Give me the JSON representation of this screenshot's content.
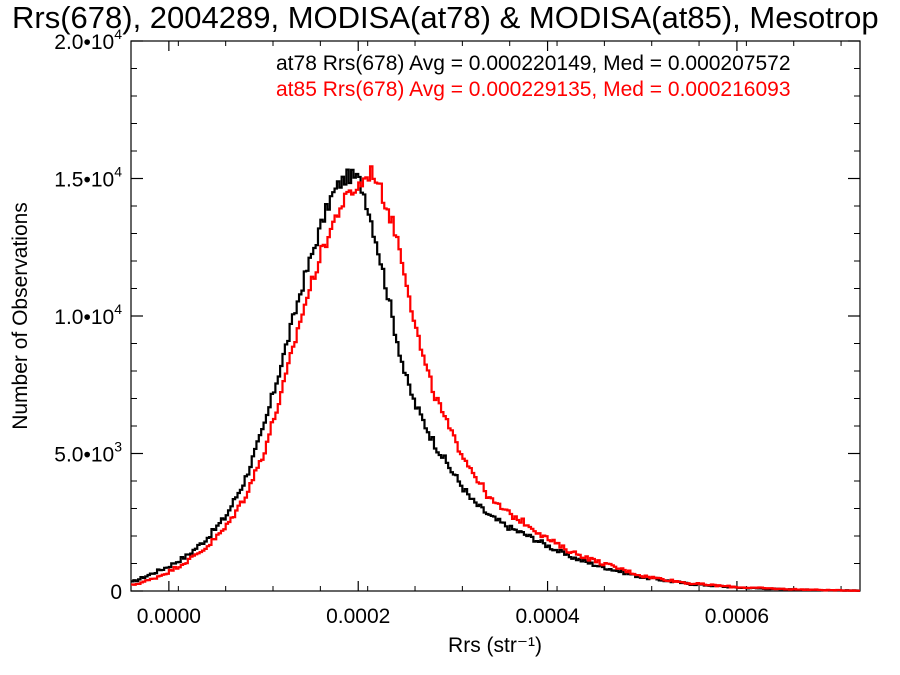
{
  "chart_data": {
    "type": "line",
    "title": "Rrs(678), 2004289, MODISA(at78) & MODISA(at85), Mesotrop",
    "xlabel": "Rrs (str⁻¹)",
    "ylabel": "Number of Observations",
    "xlim": [
      -4e-05,
      0.00073
    ],
    "ylim": [
      0,
      20000
    ],
    "grid": false,
    "x_ticks": [
      {
        "value": 0.0,
        "label": "0.0000"
      },
      {
        "value": 0.0002,
        "label": "0.0002"
      },
      {
        "value": 0.0004,
        "label": "0.0004"
      },
      {
        "value": 0.0006,
        "label": "0.0006"
      }
    ],
    "y_ticks": [
      {
        "value": 0,
        "mantissa": "0",
        "exponent": ""
      },
      {
        "value": 5000,
        "mantissa": "5.0•10",
        "exponent": "3"
      },
      {
        "value": 10000,
        "mantissa": "1.0•10",
        "exponent": "4"
      },
      {
        "value": 15000,
        "mantissa": "1.5•10",
        "exponent": "4"
      },
      {
        "value": 20000,
        "mantissa": "2.0•10",
        "exponent": "4"
      }
    ],
    "annotations": [
      {
        "text": "at78 Rrs(678) Avg = 0.000220149, Med = 0.000207572",
        "color": "#000000"
      },
      {
        "text": "at85 Rrs(678) Avg = 0.000229135, Med = 0.000216093",
        "color": "#ff0000"
      }
    ],
    "series": [
      {
        "color": "#000000",
        "x": [
          -4e-05,
          -2e-05,
          0.0,
          2e-05,
          4e-05,
          6e-05,
          8e-05,
          0.0001,
          0.00012,
          0.00014,
          0.00016,
          0.00017,
          0.00018,
          0.00019,
          0.0002,
          0.000205,
          0.00021,
          0.00022,
          0.00023,
          0.00024,
          0.00025,
          0.00026,
          0.00028,
          0.0003,
          0.00032,
          0.00034,
          0.00036,
          0.00038,
          0.0004,
          0.00042,
          0.00045,
          0.0005,
          0.00055,
          0.0006,
          0.00065,
          0.0007,
          0.00073
        ],
        "values": [
          300,
          600,
          900,
          1300,
          1900,
          2700,
          4000,
          5900,
          8400,
          11000,
          13200,
          14200,
          14800,
          15100,
          15000,
          14600,
          14000,
          12600,
          11000,
          9300,
          7800,
          6800,
          5400,
          4300,
          3300,
          2700,
          2300,
          2000,
          1650,
          1300,
          950,
          500,
          260,
          130,
          60,
          25,
          15
        ]
      },
      {
        "color": "#ff0000",
        "x": [
          -4e-05,
          -2e-05,
          0.0,
          2e-05,
          4e-05,
          6e-05,
          8e-05,
          0.0001,
          0.00012,
          0.00014,
          0.00016,
          0.00018,
          0.00019,
          0.0002,
          0.00021,
          0.000215,
          0.00022,
          0.00023,
          0.00024,
          0.00025,
          0.00026,
          0.00027,
          0.00028,
          0.0003,
          0.00032,
          0.00034,
          0.00036,
          0.00038,
          0.0004,
          0.00042,
          0.00045,
          0.0005,
          0.00055,
          0.0006,
          0.00065,
          0.0007,
          0.00073
        ],
        "values": [
          200,
          400,
          700,
          1100,
          1600,
          2300,
          3400,
          5000,
          7300,
          10000,
          12200,
          13900,
          14400,
          14700,
          15100,
          15300,
          14900,
          14000,
          13000,
          11500,
          9700,
          8300,
          7200,
          5600,
          4400,
          3300,
          2800,
          2400,
          1900,
          1500,
          1100,
          550,
          280,
          140,
          70,
          30,
          15
        ]
      }
    ]
  }
}
